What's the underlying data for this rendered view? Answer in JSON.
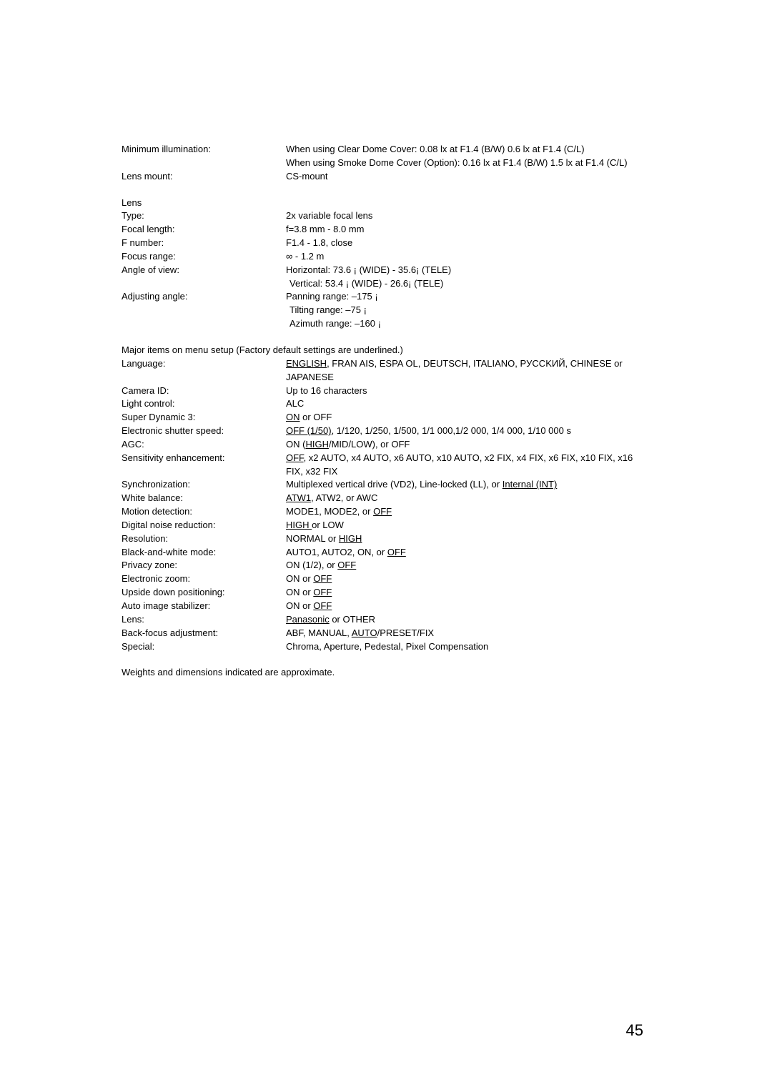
{
  "block1": {
    "rows": [
      {
        "label": "Minimum illumination:",
        "value": "When using Clear Dome Cover: 0.08 lx at F1.4 (B/W) 0.6 lx at F1.4 (C/L)\nWhen using Smoke Dome Cover (Option): 0.16 lx at F1.4 (B/W) 1.5 lx at F1.4 (C/L)"
      },
      {
        "label": "Lens mount:",
        "value": "CS-mount"
      }
    ]
  },
  "block2": {
    "heading": "Lens",
    "rows": [
      {
        "label": "Type:",
        "value": "2x variable focal lens"
      },
      {
        "label": "Focal length:",
        "value": "f=3.8 mm - 8.0 mm"
      },
      {
        "label": "F number:",
        "value": "F1.4 - 1.8, close"
      },
      {
        "label": "Focus range:",
        "value": "∞ - 1.2 m"
      },
      {
        "label": "Angle of view:",
        "value": "Horizontal: 73.6 ¡ (WIDE) - 35.6¡ (TELE)"
      },
      {
        "label": "",
        "value": "Vertical:    53.4 ¡ (WIDE) - 26.6¡ (TELE)",
        "indent": true
      },
      {
        "label": "Adjusting angle:",
        "value": "Panning range: –175  ¡"
      },
      {
        "label": "",
        "value": "Tilting range: –75  ¡",
        "indent": true
      },
      {
        "label": "",
        "value": "Azimuth range: –160  ¡",
        "indent": true
      }
    ]
  },
  "block3": {
    "heading": "Major items on menu setup (Factory default settings are underlined.)",
    "rows": [
      {
        "label": "Language:",
        "parts": [
          {
            "t": "ENGLISH",
            "u": true
          },
          {
            "t": ", FRAN  AIS, ESPA  OL, DEUTSCH, ITALIANO, PУCCKИЙ, CHINESE or JAPANESE"
          }
        ]
      },
      {
        "label": "Camera ID:",
        "parts": [
          {
            "t": "Up to 16 characters"
          }
        ]
      },
      {
        "label": "Light control:",
        "parts": [
          {
            "t": "ALC"
          }
        ]
      },
      {
        "label": "Super Dynamic 3:",
        "parts": [
          {
            "t": "ON",
            "u": true
          },
          {
            "t": " or OFF"
          }
        ]
      },
      {
        "label": "Electronic shutter speed:",
        "parts": [
          {
            "t": "OFF (1/50)",
            "u": true
          },
          {
            "t": ", 1/120, 1/250, 1/500, 1/1 000,1/2 000, 1/4 000, 1/10 000 s"
          }
        ]
      },
      {
        "label": "AGC:",
        "parts": [
          {
            "t": "ON ("
          },
          {
            "t": "HIGH",
            "u": true
          },
          {
            "t": "/MID/LOW), or OFF"
          }
        ]
      },
      {
        "label": "Sensitivity enhancement:",
        "parts": [
          {
            "t": "OFF",
            "u": true
          },
          {
            "t": ", x2 AUTO, x4 AUTO, x6 AUTO, x10 AUTO, x2 FIX, x4 FIX, x6 FIX, x10 FIX, x16 FIX, x32 FIX"
          }
        ]
      },
      {
        "label": "Synchronization:",
        "parts": [
          {
            "t": "Multiplexed vertical drive (VD2), Line-locked (LL), or "
          },
          {
            "t": "Internal (INT)",
            "u": true
          }
        ]
      },
      {
        "label": "White balance:",
        "parts": [
          {
            "t": "ATW1",
            "u": true
          },
          {
            "t": ", ATW2, or AWC"
          }
        ]
      },
      {
        "label": "Motion detection:",
        "parts": [
          {
            "t": "MODE1, MODE2, or "
          },
          {
            "t": "OFF",
            "u": true
          }
        ]
      },
      {
        "label": "Digital noise reduction:",
        "parts": [
          {
            "t": "HIGH ",
            "u": true
          },
          {
            "t": " or LOW"
          }
        ]
      },
      {
        "label": "Resolution:",
        "parts": [
          {
            "t": "NORMAL or "
          },
          {
            "t": "HIGH",
            "u": true
          }
        ]
      },
      {
        "label": "Black-and-white mode:",
        "parts": [
          {
            "t": "AUTO1, AUTO2, ON, or "
          },
          {
            "t": "OFF",
            "u": true
          }
        ]
      },
      {
        "label": "Privacy zone:",
        "parts": [
          {
            "t": "ON (1/2), or "
          },
          {
            "t": "OFF",
            "u": true
          }
        ]
      },
      {
        "label": "Electronic zoom:",
        "parts": [
          {
            "t": "ON or "
          },
          {
            "t": "OFF",
            "u": true
          }
        ]
      },
      {
        "label": "Upside down positioning:",
        "parts": [
          {
            "t": "ON or "
          },
          {
            "t": "OFF ",
            "u": true
          }
        ]
      },
      {
        "label": "Auto image stabilizer:",
        "parts": [
          {
            "t": "ON or "
          },
          {
            "t": "OFF",
            "u": true
          }
        ]
      },
      {
        "label": "Lens:",
        "parts": [
          {
            "t": "Panasonic",
            "u": true
          },
          {
            "t": " or OTHER"
          }
        ]
      },
      {
        "label": "Back-focus adjustment:",
        "parts": [
          {
            "t": "ABF, MANUAL, "
          },
          {
            "t": "AUTO",
            "u": true
          },
          {
            "t": "/PRESET/FIX"
          }
        ]
      },
      {
        "label": "Special:",
        "parts": [
          {
            "t": "Chroma, Aperture, Pedestal, Pixel Compensation"
          }
        ]
      }
    ]
  },
  "note": "Weights and dimensions indicated are approximate.",
  "pageNumber": "45"
}
